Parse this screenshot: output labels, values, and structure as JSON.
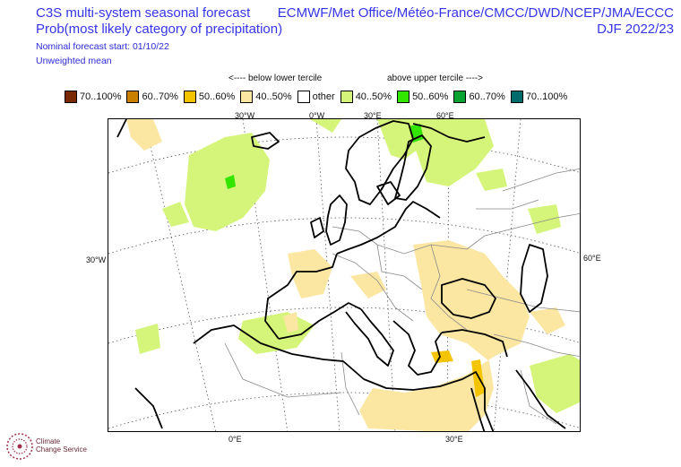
{
  "header": {
    "title_line1": "C3S multi-system seasonal forecast",
    "title_line2": "Prob(most likely category of precipitation)",
    "nominal_start": "Nominal forecast start: 01/10/22",
    "mean_type": "Unweighted mean",
    "systems": "ECMWF/Met Office/Météo-France/CMCC/DWD/NCEP/JMA/ECCC",
    "season": "DJF 2022/23"
  },
  "legend": {
    "below_label": "<---- below lower tercile",
    "above_label": "above upper tercile ---->",
    "items": [
      {
        "label": "70..100%",
        "color": "#7a2a00"
      },
      {
        "label": "60..70%",
        "color": "#c98000"
      },
      {
        "label": "50..60%",
        "color": "#f5c400"
      },
      {
        "label": "40..50%",
        "color": "#fbe6a2"
      },
      {
        "label": "other",
        "color": "#ffffff"
      },
      {
        "label": "40..50%",
        "color": "#d4f57a"
      },
      {
        "label": "50..60%",
        "color": "#33e600"
      },
      {
        "label": "60..70%",
        "color": "#0aa332"
      },
      {
        "label": "70..100%",
        "color": "#006b6b"
      }
    ]
  },
  "map": {
    "top_ticks": [
      "30°W",
      "0°W",
      "30°E",
      "60°E"
    ],
    "bottom_ticks": [
      "0°E",
      "30°E"
    ],
    "left_tick": "30°W",
    "right_tick": "60°E"
  },
  "logo": {
    "line1": "Climate",
    "line2": "Change Service"
  }
}
